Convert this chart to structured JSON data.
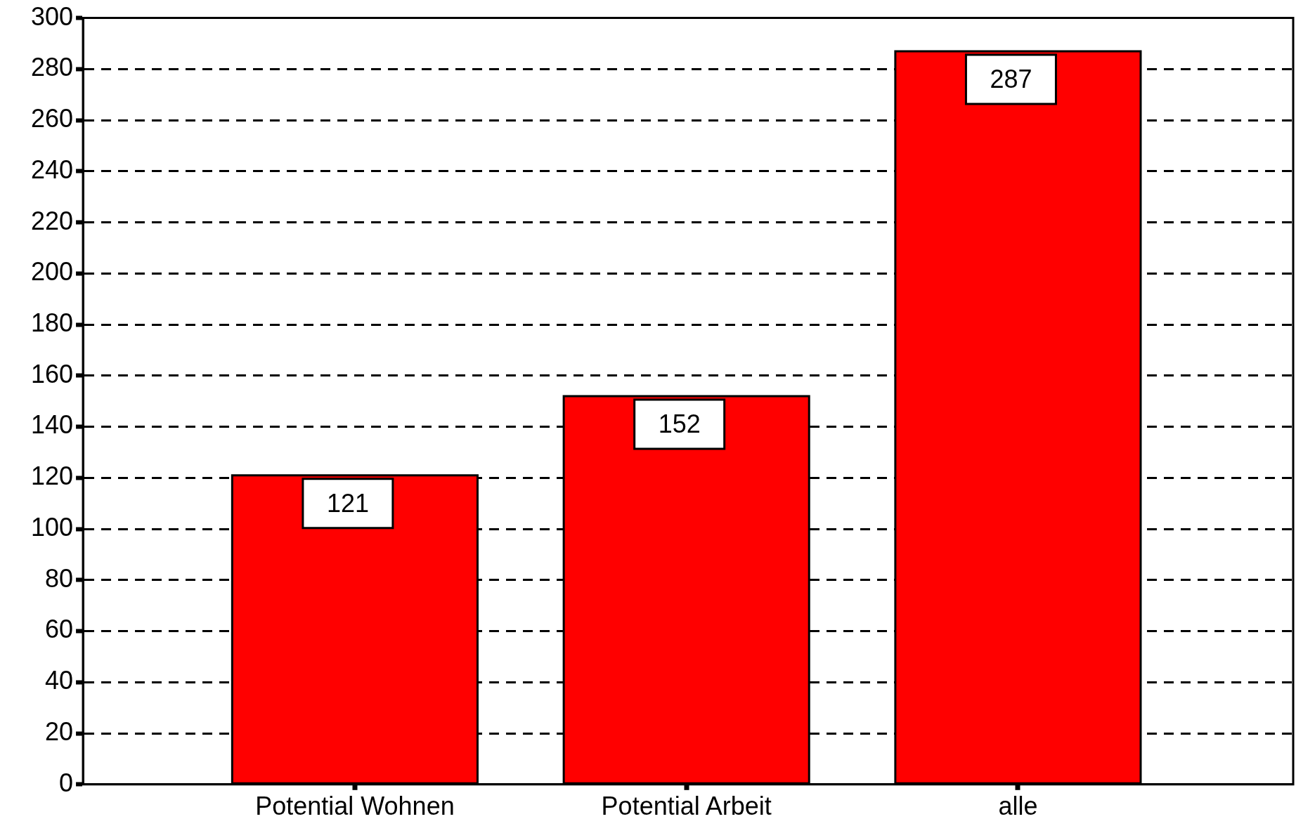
{
  "chart_data": {
    "type": "bar",
    "categories": [
      "Potential Wohnen",
      "Potential Arbeit",
      "alle"
    ],
    "values": [
      121,
      152,
      287
    ],
    "color": "#ff0000",
    "ylim": [
      0,
      300
    ],
    "yticks": [
      0,
      20,
      40,
      60,
      80,
      100,
      120,
      140,
      160,
      180,
      200,
      220,
      240,
      260,
      280,
      300
    ],
    "grid": "y",
    "data_labels": true,
    "legend": false
  }
}
